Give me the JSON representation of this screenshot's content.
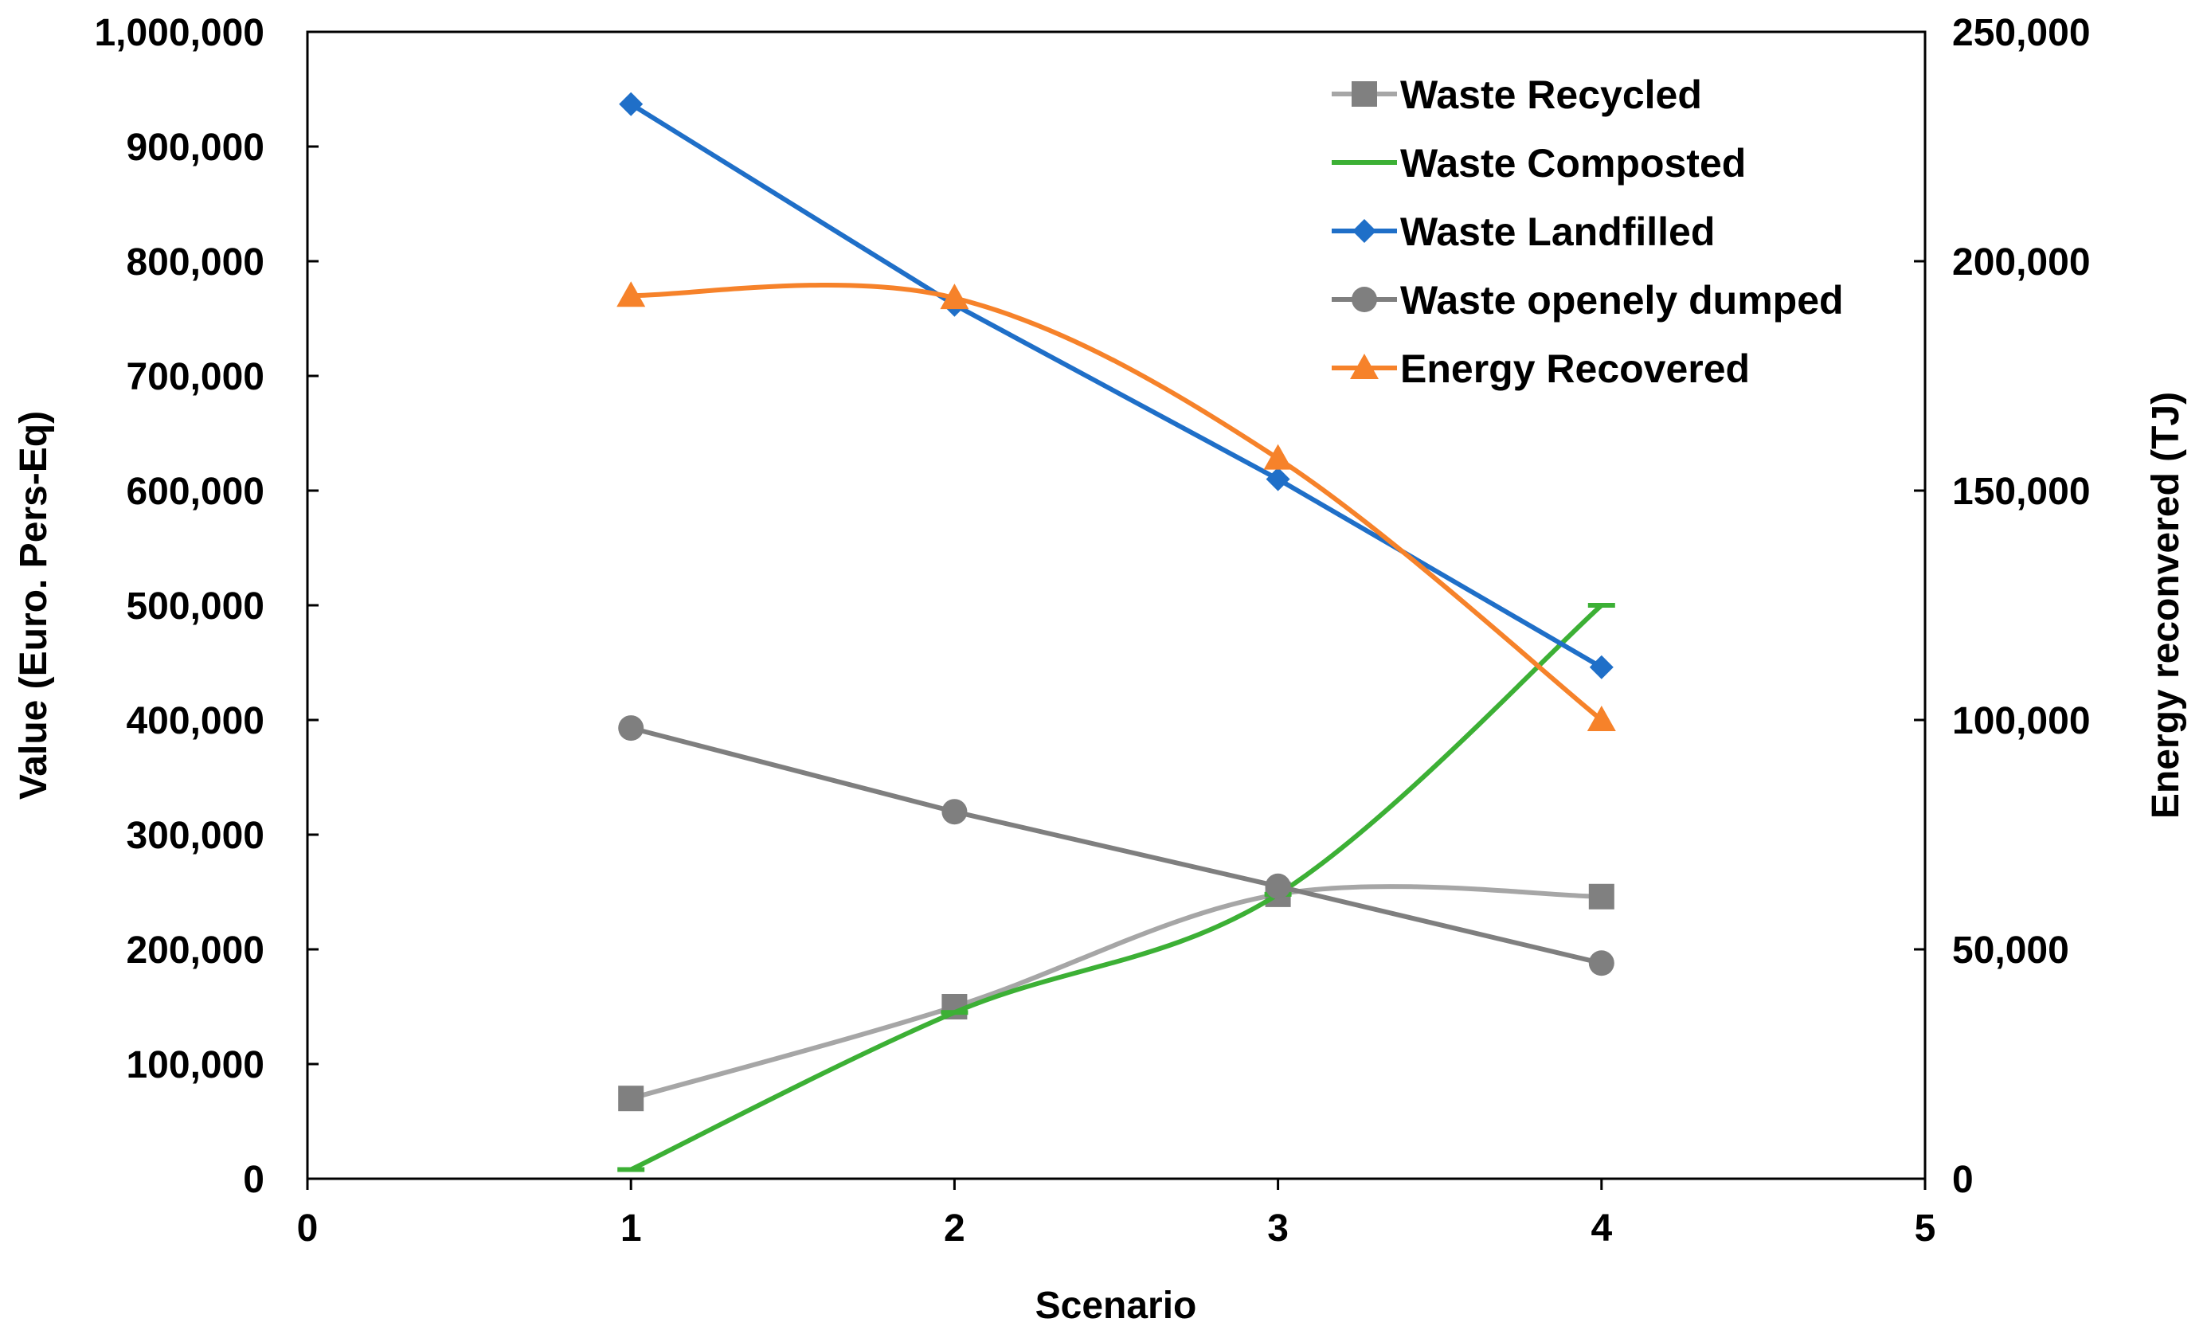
{
  "chart_data": {
    "type": "line",
    "xlabel": "Scenario",
    "ylabel": "Value (Euro. Pers-Eq)",
    "y2label": "Energy reconvered (TJ)",
    "xlim": [
      0,
      5
    ],
    "ylim": [
      0,
      1000000
    ],
    "y2lim": [
      0,
      250000
    ],
    "x_ticks": [
      "0",
      "1",
      "2",
      "3",
      "4",
      "5"
    ],
    "y_ticks": [
      "0",
      "100,000",
      "200,000",
      "300,000",
      "400,000",
      "500,000",
      "600,000",
      "700,000",
      "800,000",
      "900,000",
      "1,000,000"
    ],
    "y2_ticks": [
      "0",
      "50,000",
      "100,000",
      "150,000",
      "200,000",
      "250,000"
    ],
    "grid": false,
    "legend_position": "top-right",
    "series": [
      {
        "name": "Waste Recycled",
        "axis": "left",
        "marker": "square",
        "color": "#a6a6a6",
        "marker_color": "#808080",
        "smooth": true,
        "x": [
          1,
          2,
          3,
          4
        ],
        "values": [
          70000,
          150000,
          248000,
          246000
        ]
      },
      {
        "name": "Waste Composted",
        "axis": "left",
        "marker": "dash",
        "color": "#3cb035",
        "marker_color": "#3cb035",
        "smooth": true,
        "x": [
          1,
          2,
          3,
          4
        ],
        "values": [
          8000,
          145000,
          248000,
          500000
        ]
      },
      {
        "name": "Waste Landfilled",
        "axis": "left",
        "marker": "diamond",
        "color": "#1f6fc8",
        "marker_color": "#1f6fc8",
        "smooth": false,
        "x": [
          1,
          2,
          3,
          4
        ],
        "values": [
          937000,
          762000,
          610000,
          446000
        ]
      },
      {
        "name": "Waste openely dumped",
        "axis": "left",
        "marker": "circle",
        "color": "#7f7f7f",
        "marker_color": "#7f7f7f",
        "smooth": false,
        "x": [
          1,
          2,
          3,
          4
        ],
        "values": [
          393000,
          320000,
          255000,
          188000
        ]
      },
      {
        "name": "Energy Recovered",
        "axis": "right",
        "marker": "triangle",
        "color": "#f6822a",
        "marker_color": "#f6822a",
        "smooth": true,
        "x": [
          1,
          2,
          3,
          4
        ],
        "values": [
          192500,
          192000,
          157000,
          100000
        ]
      }
    ]
  }
}
